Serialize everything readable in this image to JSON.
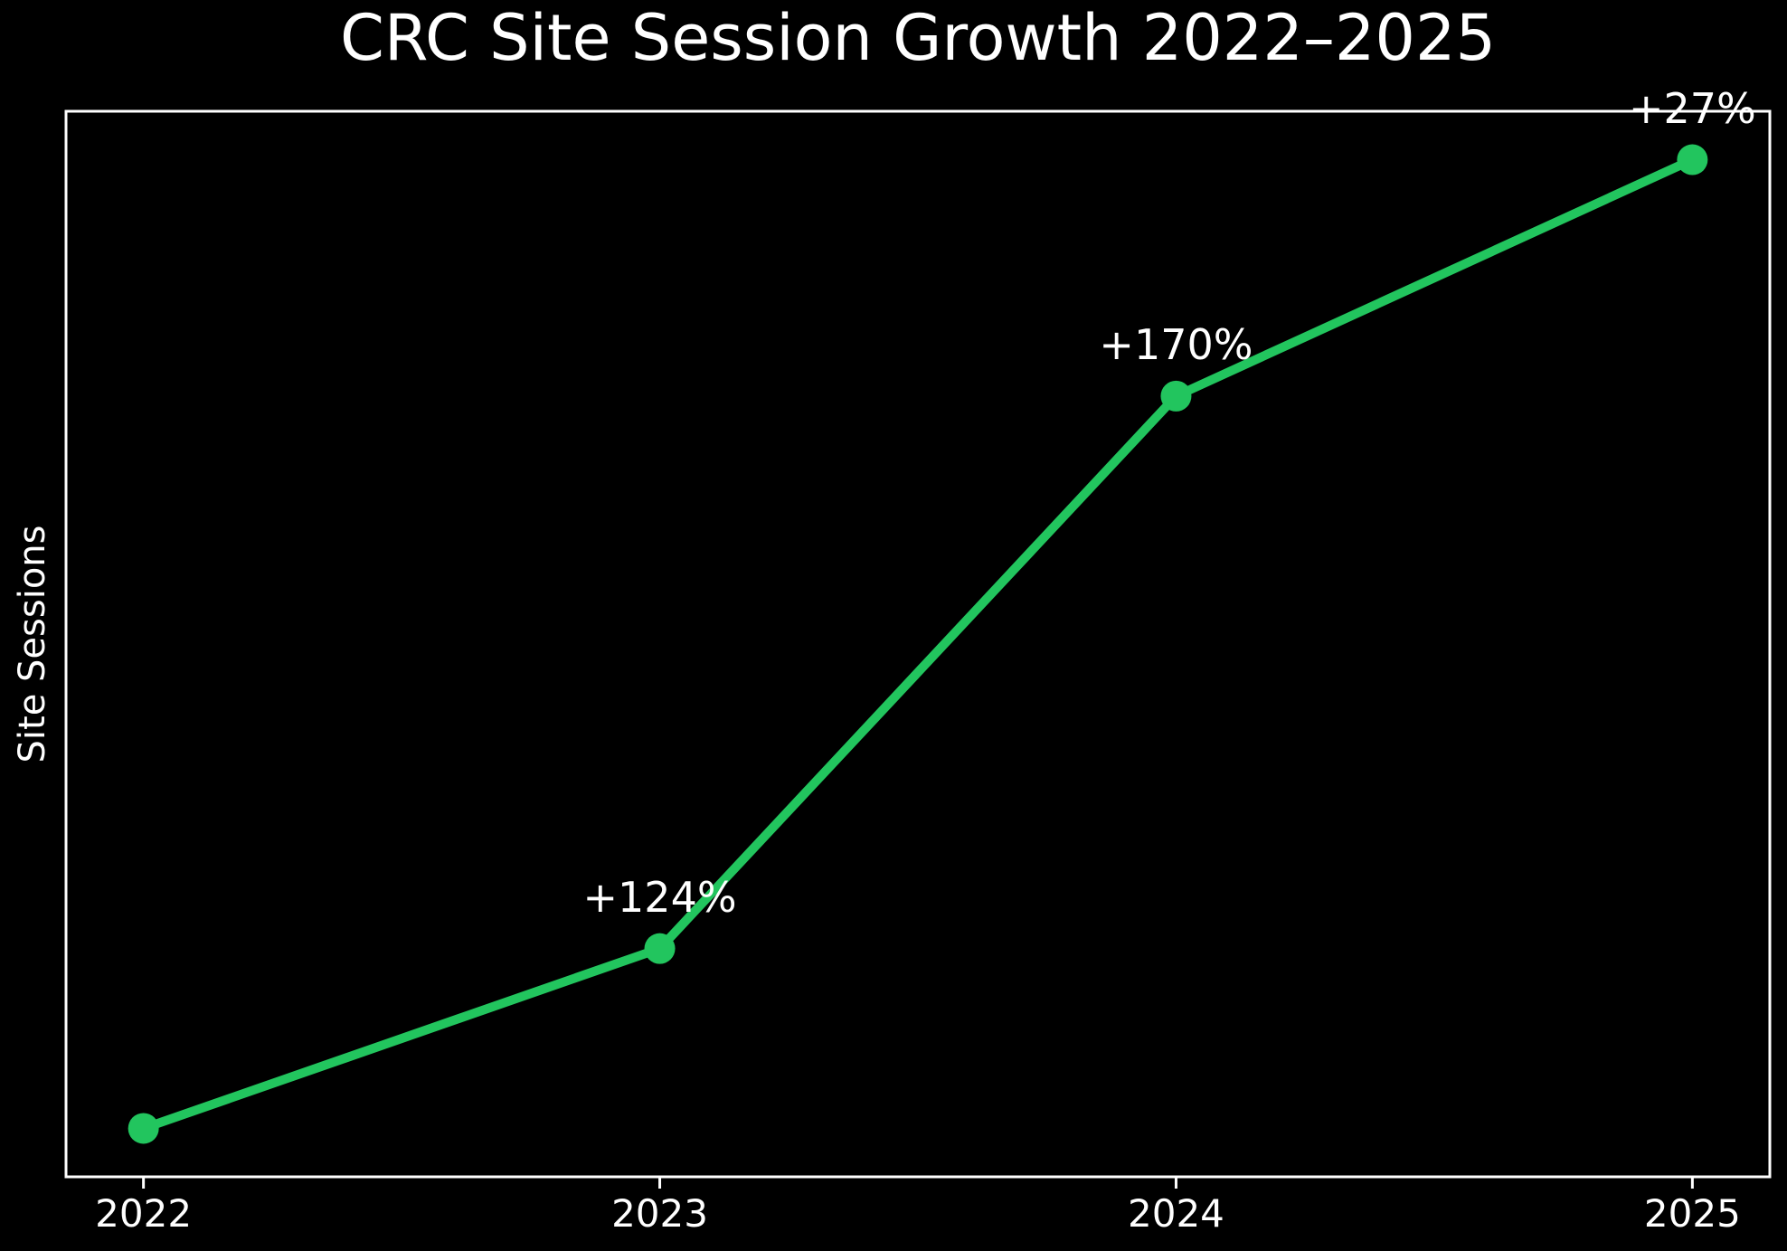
{
  "figure": {
    "background": "#000000",
    "text_color": "#ffffff"
  },
  "chart_data": {
    "type": "line",
    "title": "CRC Site Session Growth 2022–2025",
    "xlabel": "",
    "ylabel": "Site Sessions",
    "categories": [
      "2022",
      "2023",
      "2024",
      "2025"
    ],
    "series": [
      {
        "name": "Site Sessions",
        "values": [
          100,
          224,
          605,
          768
        ],
        "values_scale": "relative index (no y-axis tick labels shown; 2022 = 100)"
      }
    ],
    "point_annotations": [
      "",
      "+124%",
      "+170%",
      "+27%"
    ],
    "y_tick_labels": [],
    "grid": false,
    "legend": false,
    "line_color": "#22c55e",
    "marker": "circle",
    "spine_color": "#ffffff",
    "annotation_color": "#ffffff"
  }
}
